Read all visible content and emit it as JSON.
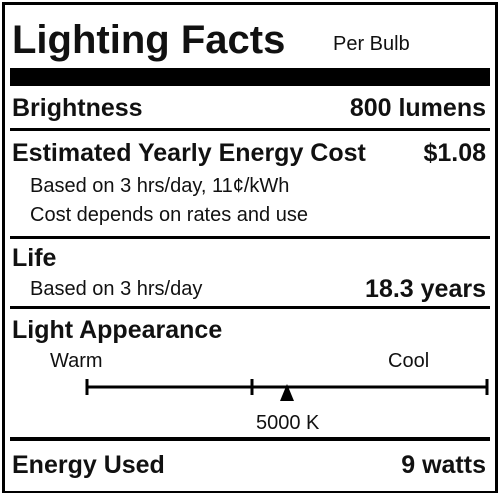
{
  "header": {
    "title": "Lighting Facts",
    "subtitle": "Per Bulb"
  },
  "brightness": {
    "label": "Brightness",
    "value": "800 lumens"
  },
  "energy_cost": {
    "label": "Estimated Yearly Energy Cost",
    "value": "$1.08",
    "notes": [
      "Based on 3 hrs/day, 11¢/kWh",
      "Cost depends on rates and use"
    ]
  },
  "life": {
    "label": "Life",
    "note": "Based on 3 hrs/day",
    "value": "18.3 years"
  },
  "light_appearance": {
    "label": "Light Appearance",
    "left": "Warm",
    "right": "Cool",
    "marker": "5000 K"
  },
  "energy_used": {
    "label": "Energy Used",
    "value": "9 watts"
  }
}
